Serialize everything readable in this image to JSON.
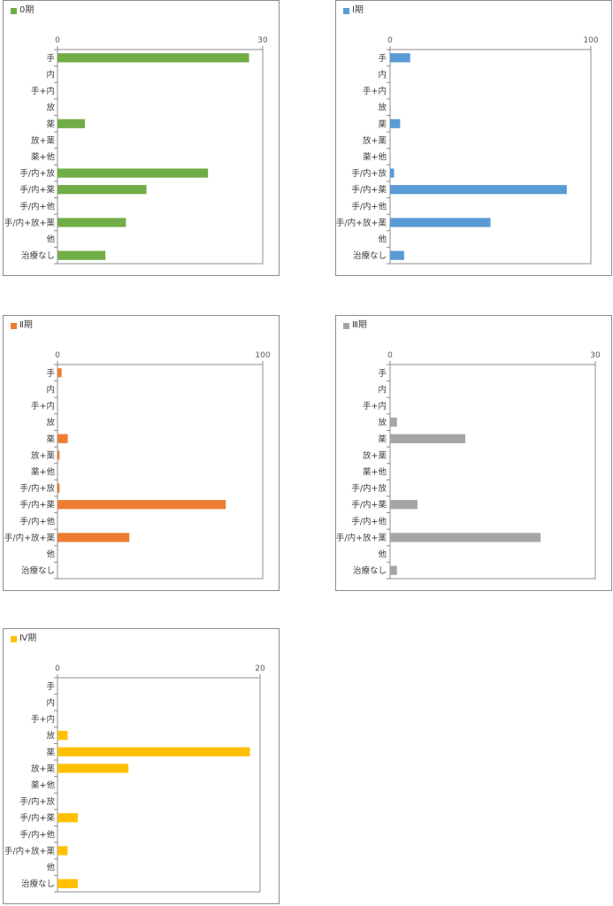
{
  "chart_data": [
    {
      "type": "bar",
      "orientation": "horizontal",
      "categories": [
        "手",
        "内",
        "手+内",
        "放",
        "薬",
        "放+薬",
        "薬+他",
        "手/内+放",
        "手/内+薬",
        "手/内+他",
        "手/内+放+薬",
        "他",
        "治療なし"
      ],
      "series": [
        {
          "name": "0期",
          "values": [
            28,
            0,
            0,
            0,
            4,
            0,
            0,
            22,
            13,
            0,
            10,
            0,
            7
          ]
        }
      ],
      "xlim": [
        0,
        30
      ],
      "xticks": [
        0,
        30
      ],
      "color": "#70ad47",
      "grid": false,
      "legend_position": "top-left"
    },
    {
      "type": "bar",
      "orientation": "horizontal",
      "categories": [
        "手",
        "内",
        "手+内",
        "放",
        "薬",
        "放+薬",
        "薬+他",
        "手/内+放",
        "手/内+薬",
        "手/内+他",
        "手/内+放+薬",
        "他",
        "治療なし"
      ],
      "series": [
        {
          "name": "Ⅰ期",
          "values": [
            10,
            0,
            0,
            0,
            5,
            0,
            0,
            2,
            88,
            0,
            50,
            0,
            7
          ]
        }
      ],
      "xlim": [
        0,
        100
      ],
      "xticks": [
        0,
        100
      ],
      "color": "#5b9bd5",
      "grid": false,
      "legend_position": "top-left"
    },
    {
      "type": "bar",
      "orientation": "horizontal",
      "categories": [
        "手",
        "内",
        "手+内",
        "放",
        "薬",
        "放+薬",
        "薬+他",
        "手/内+放",
        "手/内+薬",
        "手/内+他",
        "手/内+放+薬",
        "他",
        "治療なし"
      ],
      "series": [
        {
          "name": "Ⅱ期",
          "values": [
            2,
            0,
            0,
            0,
            5,
            1,
            0,
            1,
            82,
            0,
            35,
            0,
            0
          ]
        }
      ],
      "xlim": [
        0,
        100
      ],
      "xticks": [
        0,
        100
      ],
      "color": "#ed7d31",
      "grid": false,
      "legend_position": "top-left"
    },
    {
      "type": "bar",
      "orientation": "horizontal",
      "categories": [
        "手",
        "内",
        "手+内",
        "放",
        "薬",
        "放+薬",
        "薬+他",
        "手/内+放",
        "手/内+薬",
        "手/内+他",
        "手/内+放+薬",
        "他",
        "治療なし"
      ],
      "series": [
        {
          "name": "Ⅲ期",
          "values": [
            0,
            0,
            0,
            1,
            11,
            0,
            0,
            0,
            4,
            0,
            22,
            0,
            1
          ]
        }
      ],
      "xlim": [
        0,
        30
      ],
      "xticks": [
        0,
        30
      ],
      "color": "#a5a5a5",
      "grid": false,
      "legend_position": "top-left"
    },
    {
      "type": "bar",
      "orientation": "horizontal",
      "categories": [
        "手",
        "内",
        "手+内",
        "放",
        "薬",
        "放+薬",
        "薬+他",
        "手/内+放",
        "手/内+薬",
        "手/内+他",
        "手/内+放+薬",
        "他",
        "治療なし"
      ],
      "series": [
        {
          "name": "Ⅳ期",
          "values": [
            0,
            0,
            0,
            1,
            19,
            7,
            0,
            0,
            2,
            0,
            1,
            0,
            2
          ]
        }
      ],
      "xlim": [
        0,
        20
      ],
      "xticks": [
        0,
        20
      ],
      "color": "#ffc000",
      "grid": false,
      "legend_position": "top-left"
    }
  ]
}
